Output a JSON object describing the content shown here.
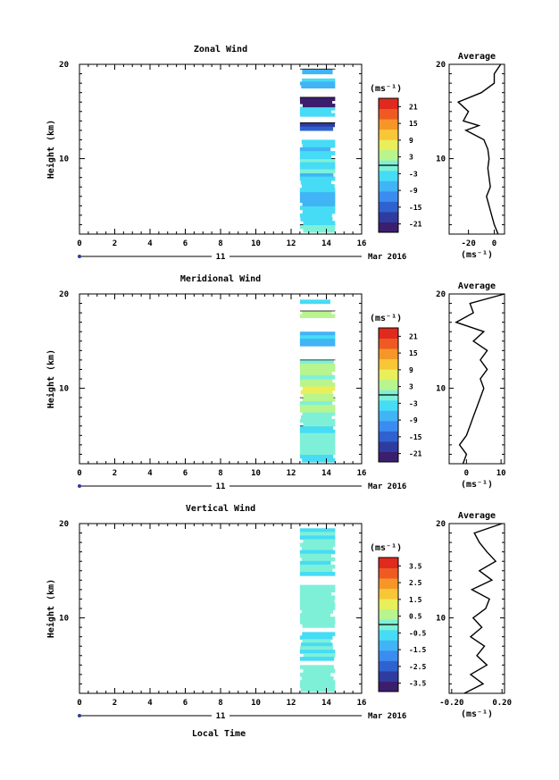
{
  "colors": {
    "scale": [
      "#3c1e6e",
      "#2e3ca0",
      "#2f62cf",
      "#3b8cf0",
      "#40b4f5",
      "#46dcf5",
      "#7ff0d8",
      "#b8f58e",
      "#e8ef5a",
      "#f7c738",
      "#f79628",
      "#ef5a22",
      "#e02a1e"
    ],
    "contour": "#000000",
    "profile": "#000000"
  },
  "time_axis": {
    "ticks": [
      "0",
      "2",
      "4",
      "6",
      "8",
      "10",
      "12",
      "14",
      "16"
    ],
    "day_label": "11",
    "month_label": "Mar 2016",
    "xlabel": "Local Time"
  },
  "chart_data": [
    {
      "type": "heatmap",
      "title": "Zonal Wind",
      "ylabel": "Height (km)",
      "yticks": [
        "20",
        "10"
      ],
      "xlim": [
        0,
        16
      ],
      "ylim": [
        2,
        20
      ],
      "data_time_range": [
        12.5,
        14.5
      ],
      "colorbar": {
        "unit": "(ms⁻¹)",
        "ticks": [
          "21",
          "15",
          "9",
          "3",
          "-3",
          "-9",
          "-15",
          "-21"
        ],
        "range": [
          -24,
          24
        ]
      },
      "bands": [
        {
          "z0": 2.2,
          "z1": 3.0,
          "v": 0
        },
        {
          "z0": 3.0,
          "z1": 5.0,
          "v": -4
        },
        {
          "z0": 5.0,
          "z1": 6.5,
          "v": -7
        },
        {
          "z0": 6.5,
          "z1": 8.5,
          "v": -5
        },
        {
          "z0": 8.5,
          "z1": 10.0,
          "v": -3
        },
        {
          "z0": 10.0,
          "z1": 12.0,
          "v": -6
        },
        {
          "z0": 13.0,
          "z1": 13.8,
          "v": -18
        },
        {
          "z0": 14.5,
          "z1": 15.5,
          "v": -5
        },
        {
          "z0": 15.5,
          "z1": 16.5,
          "v": -24
        },
        {
          "z0": 17.5,
          "z1": 18.5,
          "v": -5
        },
        {
          "z0": 19.0,
          "z1": 19.5,
          "v": -10
        }
      ],
      "profile": {
        "title": "Average",
        "xlabel": "(ms⁻¹)",
        "xticks": [
          "-20",
          "0"
        ],
        "xlim": [
          -35,
          8
        ],
        "z": [
          2,
          3,
          4,
          5,
          6,
          7,
          8,
          9,
          10,
          11,
          12,
          13,
          13.5,
          14,
          15,
          16,
          17,
          18,
          19,
          20
        ],
        "v": [
          3,
          0,
          -2,
          -4,
          -6,
          -3,
          -4,
          -5,
          -4,
          -5,
          -8,
          -22,
          -12,
          -24,
          -20,
          -28,
          -10,
          0,
          0,
          5
        ]
      }
    },
    {
      "type": "heatmap",
      "title": "Meridional Wind",
      "ylabel": "Height (km)",
      "yticks": [
        "20",
        "10"
      ],
      "xlim": [
        0,
        16
      ],
      "ylim": [
        2,
        20
      ],
      "data_time_range": [
        12.5,
        14.5
      ],
      "colorbar": {
        "unit": "(ms⁻¹)",
        "ticks": [
          "21",
          "15",
          "9",
          "3",
          "-3",
          "-9",
          "-15",
          "-21"
        ],
        "range": [
          -24,
          24
        ]
      },
      "bands": [
        {
          "z0": 2.2,
          "z1": 3.0,
          "v": -4
        },
        {
          "z0": 3.0,
          "z1": 4.5,
          "v": -1
        },
        {
          "z0": 4.5,
          "z1": 6.0,
          "v": -2
        },
        {
          "z0": 6.0,
          "z1": 7.5,
          "v": -1
        },
        {
          "z0": 7.5,
          "z1": 9.0,
          "v": 3
        },
        {
          "z0": 9.0,
          "z1": 11.0,
          "v": 5
        },
        {
          "z0": 11.0,
          "z1": 13.0,
          "v": 3
        },
        {
          "z0": 14.5,
          "z1": 16.0,
          "v": -6
        },
        {
          "z0": 17.5,
          "z1": 18.2,
          "v": 4
        },
        {
          "z0": 19.0,
          "z1": 19.4,
          "v": -2
        }
      ],
      "profile": {
        "title": "Average",
        "xlabel": "(ms⁻¹)",
        "xticks": [
          "0",
          "10"
        ],
        "xlim": [
          -5,
          11
        ],
        "z": [
          2,
          3,
          4,
          5,
          6,
          7,
          8,
          9,
          10,
          11,
          12,
          13,
          14,
          15,
          16,
          17,
          18,
          19,
          20
        ],
        "v": [
          -1,
          0,
          -2,
          0,
          1,
          2,
          3,
          4,
          5,
          4,
          6,
          4,
          6,
          2,
          5,
          -3,
          2,
          1,
          11
        ]
      }
    },
    {
      "type": "heatmap",
      "title": "Vertical Wind",
      "ylabel": "Height (km)",
      "yticks": [
        "20",
        "10"
      ],
      "xlim": [
        0,
        16
      ],
      "ylim": [
        2,
        20
      ],
      "data_time_range": [
        12.5,
        14.5
      ],
      "colorbar": {
        "unit": "(ms⁻¹)",
        "ticks": [
          "3.5",
          "2.5",
          "1.5",
          "0.5",
          "-0.5",
          "-1.5",
          "-2.5",
          "-3.5"
        ],
        "range": [
          -4,
          4
        ]
      },
      "bands": [
        {
          "z0": 2.2,
          "z1": 5.0,
          "v": 0
        },
        {
          "z0": 5.5,
          "z1": 8.5,
          "v": -0.3
        },
        {
          "z0": 9.0,
          "z1": 13.5,
          "v": 0
        },
        {
          "z0": 14.5,
          "z1": 19.5,
          "v": -0.2
        }
      ],
      "profile": {
        "title": "Average",
        "xlabel": "(ms⁻¹)",
        "xticks": [
          "-0.20",
          "0.20"
        ],
        "xlim": [
          -0.22,
          0.22
        ],
        "z": [
          2,
          3,
          4,
          5,
          6,
          7,
          8,
          9,
          10,
          11,
          12,
          13,
          14,
          15,
          16,
          17,
          18,
          19,
          20
        ],
        "v": [
          -0.1,
          0.05,
          -0.05,
          0.08,
          0,
          0.06,
          -0.05,
          0.04,
          -0.03,
          0.07,
          0.1,
          -0.04,
          0.12,
          0.02,
          0.15,
          0.08,
          0.02,
          -0.02,
          0.2
        ]
      }
    }
  ]
}
